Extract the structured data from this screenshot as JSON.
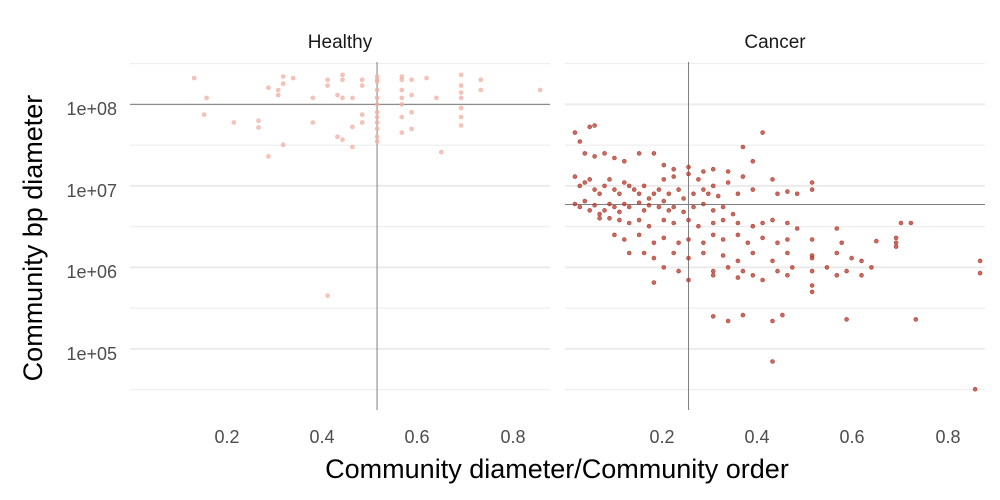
{
  "chart_data": {
    "type": "scatter",
    "xlabel": "Community diameter/Community order",
    "ylabel": "Community bp diameter",
    "y_scale": "log10",
    "xlim": [
      0,
      0.85
    ],
    "ylim_log10": [
      4.25,
      8.52
    ],
    "x_ticks": [
      0.2,
      0.4,
      0.6,
      0.8
    ],
    "x_tick_labels": [
      "0.2",
      "0.4",
      "0.6",
      "0.8"
    ],
    "y_ticks_log10": [
      5,
      6,
      7,
      8
    ],
    "y_tick_labels": [
      "1e+05",
      "1e+06",
      "1e+07",
      "1e+08"
    ],
    "grid": true,
    "colors": {
      "healthy": "#f1b2a4",
      "cancer": "#b33a2c",
      "refline": "#7f7f7f",
      "grid": "#ebebeb"
    },
    "panels": [
      {
        "name": "Healthy",
        "color": "#f1b2a4",
        "vline_x": 0.5,
        "hline_y": 100000000.0,
        "points": [
          [
            0.13,
            210000000.0
          ],
          [
            0.155,
            120000000.0
          ],
          [
            0.15,
            75000000.0
          ],
          [
            0.21,
            60000000.0
          ],
          [
            0.26,
            63000000.0
          ],
          [
            0.26,
            52000000.0
          ],
          [
            0.28,
            160000000.0
          ],
          [
            0.3,
            150000000.0
          ],
          [
            0.3,
            130000000.0
          ],
          [
            0.31,
            180000000.0
          ],
          [
            0.31,
            220000000.0
          ],
          [
            0.33,
            210000000.0
          ],
          [
            0.28,
            23000000.0
          ],
          [
            0.31,
            32000000.0
          ],
          [
            0.37,
            120000000.0
          ],
          [
            0.37,
            60000000.0
          ],
          [
            0.4,
            200000000.0
          ],
          [
            0.4,
            170000000.0
          ],
          [
            0.42,
            130000000.0
          ],
          [
            0.42,
            40000000.0
          ],
          [
            0.43,
            37000000.0
          ],
          [
            0.43,
            230000000.0
          ],
          [
            0.43,
            200000000.0
          ],
          [
            0.43,
            120000000.0
          ],
          [
            0.45,
            120000000.0
          ],
          [
            0.45,
            53000000.0
          ],
          [
            0.45,
            30000000.0
          ],
          [
            0.47,
            200000000.0
          ],
          [
            0.47,
            170000000.0
          ],
          [
            0.47,
            75000000.0
          ],
          [
            0.47,
            60000000.0
          ],
          [
            0.5,
            220000000.0
          ],
          [
            0.5,
            200000000.0
          ],
          [
            0.5,
            190000000.0
          ],
          [
            0.5,
            150000000.0
          ],
          [
            0.5,
            120000000.0
          ],
          [
            0.5,
            100000000.0
          ],
          [
            0.5,
            80000000.0
          ],
          [
            0.5,
            70000000.0
          ],
          [
            0.5,
            60000000.0
          ],
          [
            0.5,
            50000000.0
          ],
          [
            0.5,
            40000000.0
          ],
          [
            0.5,
            35000000.0
          ],
          [
            0.55,
            220000000.0
          ],
          [
            0.55,
            200000000.0
          ],
          [
            0.55,
            150000000.0
          ],
          [
            0.55,
            120000000.0
          ],
          [
            0.55,
            100000000.0
          ],
          [
            0.55,
            70000000.0
          ],
          [
            0.55,
            45000000.0
          ],
          [
            0.57,
            200000000.0
          ],
          [
            0.57,
            130000000.0
          ],
          [
            0.57,
            80000000.0
          ],
          [
            0.57,
            50000000.0
          ],
          [
            0.6,
            210000000.0
          ],
          [
            0.62,
            120000000.0
          ],
          [
            0.63,
            26000000.0
          ],
          [
            0.67,
            230000000.0
          ],
          [
            0.67,
            170000000.0
          ],
          [
            0.67,
            140000000.0
          ],
          [
            0.67,
            120000000.0
          ],
          [
            0.67,
            90000000.0
          ],
          [
            0.67,
            70000000.0
          ],
          [
            0.67,
            55000000.0
          ],
          [
            0.71,
            200000000.0
          ],
          [
            0.71,
            150000000.0
          ],
          [
            0.83,
            150000000.0
          ],
          [
            0.4,
            450000.0
          ]
        ]
      },
      {
        "name": "Cancer",
        "color": "#b33a2c",
        "vline_x": 0.25,
        "hline_y": 5900000.0,
        "points": [
          [
            0.02,
            45000000.0
          ],
          [
            0.03,
            35000000.0
          ],
          [
            0.05,
            53000000.0
          ],
          [
            0.06,
            55000000.0
          ],
          [
            0.04,
            25000000.0
          ],
          [
            0.06,
            23000000.0
          ],
          [
            0.08,
            25000000.0
          ],
          [
            0.1,
            22000000.0
          ],
          [
            0.12,
            20000000.0
          ],
          [
            0.15,
            25000000.0
          ],
          [
            0.18,
            25000000.0
          ],
          [
            0.2,
            18000000.0
          ],
          [
            0.22,
            16000000.0
          ],
          [
            0.25,
            17000000.0
          ],
          [
            0.28,
            15000000.0
          ],
          [
            0.3,
            16000000.0
          ],
          [
            0.33,
            15000000.0
          ],
          [
            0.36,
            30000000.0
          ],
          [
            0.38,
            20000000.0
          ],
          [
            0.4,
            45000000.0
          ],
          [
            0.02,
            13000000.0
          ],
          [
            0.03,
            10000000.0
          ],
          [
            0.04,
            11000000.0
          ],
          [
            0.05,
            12000000.0
          ],
          [
            0.06,
            9000000.0
          ],
          [
            0.07,
            8000000.0
          ],
          [
            0.08,
            10000000.0
          ],
          [
            0.09,
            12000000.0
          ],
          [
            0.1,
            9000000.0
          ],
          [
            0.11,
            8000000.0
          ],
          [
            0.12,
            11000000.0
          ],
          [
            0.13,
            10000000.0
          ],
          [
            0.14,
            9000000.0
          ],
          [
            0.15,
            8000000.0
          ],
          [
            0.16,
            10000000.0
          ],
          [
            0.17,
            7000000.0
          ],
          [
            0.18,
            8000000.0
          ],
          [
            0.19,
            9000000.0
          ],
          [
            0.2,
            12000000.0
          ],
          [
            0.21,
            8000000.0
          ],
          [
            0.22,
            13000000.0
          ],
          [
            0.23,
            9000000.0
          ],
          [
            0.24,
            7000000.0
          ],
          [
            0.25,
            14000000.0
          ],
          [
            0.26,
            8000000.0
          ],
          [
            0.27,
            12000000.0
          ],
          [
            0.28,
            9000000.0
          ],
          [
            0.29,
            8000000.0
          ],
          [
            0.3,
            10000000.0
          ],
          [
            0.31,
            7500000.0
          ],
          [
            0.33,
            11000000.0
          ],
          [
            0.35,
            8000000.0
          ],
          [
            0.36,
            13000000.0
          ],
          [
            0.38,
            9000000.0
          ],
          [
            0.42,
            12000000.0
          ],
          [
            0.43,
            8000000.0
          ],
          [
            0.45,
            8500000.0
          ],
          [
            0.47,
            8000000.0
          ],
          [
            0.5,
            11000000.0
          ],
          [
            0.5,
            9000000.0
          ],
          [
            0.02,
            6000000.0
          ],
          [
            0.03,
            5500000.0
          ],
          [
            0.04,
            6500000.0
          ],
          [
            0.05,
            5000000.0
          ],
          [
            0.06,
            5800000.0
          ],
          [
            0.07,
            4500000.0
          ],
          [
            0.08,
            5000000.0
          ],
          [
            0.09,
            6000000.0
          ],
          [
            0.1,
            5500000.0
          ],
          [
            0.11,
            4800000.0
          ],
          [
            0.12,
            6000000.0
          ],
          [
            0.13,
            5500000.0
          ],
          [
            0.15,
            6200000.0
          ],
          [
            0.16,
            5000000.0
          ],
          [
            0.17,
            5800000.0
          ],
          [
            0.19,
            5500000.0
          ],
          [
            0.2,
            6500000.0
          ],
          [
            0.21,
            5000000.0
          ],
          [
            0.22,
            5500000.0
          ],
          [
            0.24,
            4800000.0
          ],
          [
            0.26,
            5500000.0
          ],
          [
            0.28,
            6000000.0
          ],
          [
            0.3,
            5000000.0
          ],
          [
            0.32,
            5500000.0
          ],
          [
            0.34,
            4500000.0
          ],
          [
            0.07,
            4000000.0
          ],
          [
            0.09,
            4000000.0
          ],
          [
            0.11,
            3800000.0
          ],
          [
            0.13,
            3500000.0
          ],
          [
            0.15,
            3800000.0
          ],
          [
            0.17,
            3200000.0
          ],
          [
            0.2,
            3800000.0
          ],
          [
            0.22,
            3500000.0
          ],
          [
            0.25,
            3800000.0
          ],
          [
            0.27,
            3200000.0
          ],
          [
            0.3,
            3500000.0
          ],
          [
            0.32,
            3800000.0
          ],
          [
            0.35,
            3500000.0
          ],
          [
            0.38,
            3200000.0
          ],
          [
            0.4,
            3500000.0
          ],
          [
            0.42,
            3800000.0
          ],
          [
            0.45,
            3500000.0
          ],
          [
            0.47,
            3000000.0
          ],
          [
            0.55,
            3000000.0
          ],
          [
            0.68,
            3500000.0
          ],
          [
            0.7,
            3500000.0
          ],
          [
            0.1,
            2500000.0
          ],
          [
            0.12,
            2200000.0
          ],
          [
            0.15,
            2500000.0
          ],
          [
            0.18,
            2000000.0
          ],
          [
            0.2,
            2300000.0
          ],
          [
            0.23,
            2000000.0
          ],
          [
            0.25,
            2200000.0
          ],
          [
            0.28,
            2000000.0
          ],
          [
            0.3,
            2500000.0
          ],
          [
            0.32,
            2200000.0
          ],
          [
            0.35,
            2500000.0
          ],
          [
            0.37,
            2000000.0
          ],
          [
            0.4,
            2300000.0
          ],
          [
            0.43,
            2000000.0
          ],
          [
            0.45,
            2200000.0
          ],
          [
            0.5,
            2200000.0
          ],
          [
            0.56,
            2000000.0
          ],
          [
            0.63,
            2100000.0
          ],
          [
            0.67,
            2000000.0
          ],
          [
            0.67,
            2300000.0
          ],
          [
            0.67,
            1800000.0
          ],
          [
            0.13,
            1500000.0
          ],
          [
            0.16,
            1500000.0
          ],
          [
            0.18,
            1300000.0
          ],
          [
            0.22,
            1500000.0
          ],
          [
            0.25,
            1300000.0
          ],
          [
            0.28,
            1500000.0
          ],
          [
            0.32,
            1400000.0
          ],
          [
            0.35,
            1200000.0
          ],
          [
            0.38,
            1500000.0
          ],
          [
            0.42,
            1200000.0
          ],
          [
            0.45,
            1500000.0
          ],
          [
            0.5,
            1300000.0
          ],
          [
            0.5,
            1400000.0
          ],
          [
            0.55,
            1500000.0
          ],
          [
            0.58,
            1300000.0
          ],
          [
            0.6,
            1200000.0
          ],
          [
            0.84,
            1200000.0
          ],
          [
            0.2,
            1000000.0
          ],
          [
            0.23,
            900000.0
          ],
          [
            0.3,
            900000.0
          ],
          [
            0.33,
            1000000.0
          ],
          [
            0.36,
            900000.0
          ],
          [
            0.38,
            800000.0
          ],
          [
            0.43,
            900000.0
          ],
          [
            0.46,
            1000000.0
          ],
          [
            0.5,
            900000.0
          ],
          [
            0.53,
            1000000.0
          ],
          [
            0.57,
            900000.0
          ],
          [
            0.62,
            1000000.0
          ],
          [
            0.18,
            650000.0
          ],
          [
            0.25,
            700000.0
          ],
          [
            0.3,
            800000.0
          ],
          [
            0.35,
            750000.0
          ],
          [
            0.4,
            700000.0
          ],
          [
            0.45,
            800000.0
          ],
          [
            0.5,
            600000.0
          ],
          [
            0.5,
            500000.0
          ],
          [
            0.55,
            800000.0
          ],
          [
            0.6,
            800000.0
          ],
          [
            0.84,
            850000.0
          ],
          [
            0.3,
            250000.0
          ],
          [
            0.33,
            220000.0
          ],
          [
            0.36,
            260000.0
          ],
          [
            0.42,
            220000.0
          ],
          [
            0.44,
            260000.0
          ],
          [
            0.57,
            230000.0
          ],
          [
            0.71,
            230000.0
          ],
          [
            0.42,
            70000.0
          ],
          [
            0.83,
            32000.0
          ]
        ]
      }
    ]
  }
}
